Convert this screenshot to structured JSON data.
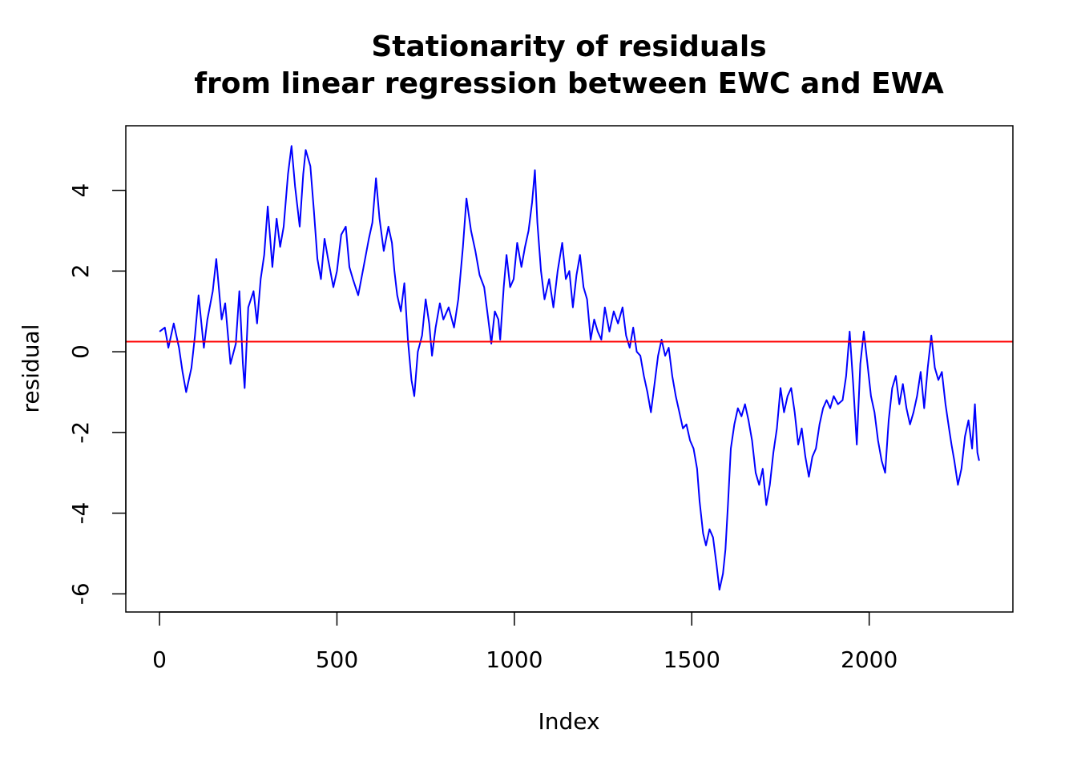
{
  "chart_data": {
    "type": "line",
    "title": "Stationarity of residuals",
    "subtitle": "from linear regression between EWC and EWA",
    "xlabel": "Index",
    "ylabel": "residual",
    "xlim": [
      -95,
      2405
    ],
    "ylim": [
      -6.45,
      5.6
    ],
    "x_ticks": [
      0,
      500,
      1000,
      1500,
      2000
    ],
    "y_ticks": [
      -6,
      -4,
      -2,
      0,
      2,
      4
    ],
    "x_tick_labels": [
      "0",
      "500",
      "1000",
      "1500",
      "2000"
    ],
    "y_tick_labels": [
      "-6",
      "-4",
      "-2",
      "0",
      "2",
      "4"
    ],
    "grid": false,
    "series": [
      {
        "color": "#0000ff",
        "points": [
          [
            0,
            0.5
          ],
          [
            15,
            0.6
          ],
          [
            25,
            0.1
          ],
          [
            40,
            0.7
          ],
          [
            55,
            0.1
          ],
          [
            65,
            -0.5
          ],
          [
            75,
            -1.0
          ],
          [
            90,
            -0.4
          ],
          [
            100,
            0.4
          ],
          [
            110,
            1.4
          ],
          [
            125,
            0.1
          ],
          [
            135,
            0.8
          ],
          [
            150,
            1.5
          ],
          [
            160,
            2.3
          ],
          [
            175,
            0.8
          ],
          [
            185,
            1.2
          ],
          [
            200,
            -0.3
          ],
          [
            215,
            0.2
          ],
          [
            225,
            1.5
          ],
          [
            235,
            -0.3
          ],
          [
            240,
            -0.9
          ],
          [
            250,
            1.1
          ],
          [
            265,
            1.5
          ],
          [
            275,
            0.7
          ],
          [
            285,
            1.8
          ],
          [
            295,
            2.4
          ],
          [
            305,
            3.6
          ],
          [
            318,
            2.1
          ],
          [
            330,
            3.3
          ],
          [
            340,
            2.6
          ],
          [
            350,
            3.1
          ],
          [
            362,
            4.4
          ],
          [
            372,
            5.1
          ],
          [
            382,
            4.1
          ],
          [
            395,
            3.1
          ],
          [
            405,
            4.4
          ],
          [
            412,
            5.0
          ],
          [
            425,
            4.6
          ],
          [
            435,
            3.5
          ],
          [
            445,
            2.3
          ],
          [
            455,
            1.8
          ],
          [
            465,
            2.8
          ],
          [
            475,
            2.3
          ],
          [
            490,
            1.6
          ],
          [
            500,
            2.0
          ],
          [
            512,
            2.9
          ],
          [
            525,
            3.1
          ],
          [
            535,
            2.1
          ],
          [
            545,
            1.8
          ],
          [
            560,
            1.4
          ],
          [
            575,
            2.1
          ],
          [
            590,
            2.8
          ],
          [
            600,
            3.2
          ],
          [
            610,
            4.3
          ],
          [
            620,
            3.3
          ],
          [
            632,
            2.5
          ],
          [
            645,
            3.1
          ],
          [
            655,
            2.7
          ],
          [
            662,
            2.0
          ],
          [
            670,
            1.4
          ],
          [
            680,
            1.0
          ],
          [
            690,
            1.7
          ],
          [
            700,
            0.3
          ],
          [
            710,
            -0.7
          ],
          [
            718,
            -1.1
          ],
          [
            728,
            0.0
          ],
          [
            740,
            0.4
          ],
          [
            750,
            1.3
          ],
          [
            760,
            0.7
          ],
          [
            768,
            -0.1
          ],
          [
            778,
            0.6
          ],
          [
            790,
            1.2
          ],
          [
            800,
            0.8
          ],
          [
            815,
            1.1
          ],
          [
            830,
            0.6
          ],
          [
            842,
            1.3
          ],
          [
            855,
            2.6
          ],
          [
            865,
            3.8
          ],
          [
            878,
            3.0
          ],
          [
            890,
            2.5
          ],
          [
            902,
            1.9
          ],
          [
            915,
            1.6
          ],
          [
            925,
            0.9
          ],
          [
            935,
            0.2
          ],
          [
            945,
            1.0
          ],
          [
            955,
            0.8
          ],
          [
            960,
            0.3
          ],
          [
            970,
            1.6
          ],
          [
            978,
            2.4
          ],
          [
            988,
            1.6
          ],
          [
            998,
            1.8
          ],
          [
            1008,
            2.7
          ],
          [
            1020,
            2.1
          ],
          [
            1030,
            2.6
          ],
          [
            1040,
            3.0
          ],
          [
            1050,
            3.7
          ],
          [
            1058,
            4.5
          ],
          [
            1065,
            3.2
          ],
          [
            1075,
            2.0
          ],
          [
            1085,
            1.3
          ],
          [
            1098,
            1.8
          ],
          [
            1110,
            1.1
          ],
          [
            1122,
            2.0
          ],
          [
            1135,
            2.7
          ],
          [
            1145,
            1.8
          ],
          [
            1155,
            2.0
          ],
          [
            1165,
            1.1
          ],
          [
            1175,
            1.9
          ],
          [
            1185,
            2.4
          ],
          [
            1195,
            1.6
          ],
          [
            1205,
            1.3
          ],
          [
            1215,
            0.3
          ],
          [
            1225,
            0.8
          ],
          [
            1235,
            0.5
          ],
          [
            1245,
            0.3
          ],
          [
            1255,
            1.1
          ],
          [
            1268,
            0.5
          ],
          [
            1280,
            1.0
          ],
          [
            1292,
            0.7
          ],
          [
            1305,
            1.1
          ],
          [
            1315,
            0.4
          ],
          [
            1325,
            0.1
          ],
          [
            1335,
            0.6
          ],
          [
            1345,
            0.0
          ],
          [
            1355,
            -0.1
          ],
          [
            1365,
            -0.6
          ],
          [
            1375,
            -1.0
          ],
          [
            1385,
            -1.5
          ],
          [
            1395,
            -0.8
          ],
          [
            1405,
            -0.1
          ],
          [
            1415,
            0.3
          ],
          [
            1425,
            -0.1
          ],
          [
            1435,
            0.1
          ],
          [
            1445,
            -0.6
          ],
          [
            1455,
            -1.1
          ],
          [
            1465,
            -1.5
          ],
          [
            1475,
            -1.9
          ],
          [
            1485,
            -1.8
          ],
          [
            1495,
            -2.2
          ],
          [
            1505,
            -2.4
          ],
          [
            1515,
            -2.9
          ],
          [
            1522,
            -3.7
          ],
          [
            1532,
            -4.5
          ],
          [
            1540,
            -4.8
          ],
          [
            1550,
            -4.4
          ],
          [
            1560,
            -4.6
          ],
          [
            1570,
            -5.3
          ],
          [
            1578,
            -5.9
          ],
          [
            1588,
            -5.5
          ],
          [
            1595,
            -4.9
          ],
          [
            1602,
            -3.8
          ],
          [
            1610,
            -2.4
          ],
          [
            1620,
            -1.8
          ],
          [
            1630,
            -1.4
          ],
          [
            1640,
            -1.6
          ],
          [
            1650,
            -1.3
          ],
          [
            1660,
            -1.7
          ],
          [
            1670,
            -2.2
          ],
          [
            1680,
            -3.0
          ],
          [
            1690,
            -3.3
          ],
          [
            1700,
            -2.9
          ],
          [
            1710,
            -3.8
          ],
          [
            1720,
            -3.3
          ],
          [
            1730,
            -2.5
          ],
          [
            1740,
            -1.9
          ],
          [
            1750,
            -0.9
          ],
          [
            1760,
            -1.5
          ],
          [
            1770,
            -1.1
          ],
          [
            1780,
            -0.9
          ],
          [
            1790,
            -1.5
          ],
          [
            1800,
            -2.3
          ],
          [
            1810,
            -1.9
          ],
          [
            1820,
            -2.6
          ],
          [
            1830,
            -3.1
          ],
          [
            1840,
            -2.6
          ],
          [
            1850,
            -2.4
          ],
          [
            1860,
            -1.8
          ],
          [
            1870,
            -1.4
          ],
          [
            1880,
            -1.2
          ],
          [
            1890,
            -1.4
          ],
          [
            1900,
            -1.1
          ],
          [
            1912,
            -1.3
          ],
          [
            1925,
            -1.2
          ],
          [
            1935,
            -0.6
          ],
          [
            1945,
            0.5
          ],
          [
            1955,
            -0.8
          ],
          [
            1965,
            -2.3
          ],
          [
            1975,
            -0.3
          ],
          [
            1985,
            0.5
          ],
          [
            1995,
            -0.3
          ],
          [
            2005,
            -1.1
          ],
          [
            2015,
            -1.5
          ],
          [
            2025,
            -2.2
          ],
          [
            2035,
            -2.7
          ],
          [
            2045,
            -3.0
          ],
          [
            2055,
            -1.7
          ],
          [
            2065,
            -0.9
          ],
          [
            2075,
            -0.6
          ],
          [
            2085,
            -1.3
          ],
          [
            2095,
            -0.8
          ],
          [
            2105,
            -1.4
          ],
          [
            2115,
            -1.8
          ],
          [
            2125,
            -1.5
          ],
          [
            2135,
            -1.1
          ],
          [
            2145,
            -0.5
          ],
          [
            2155,
            -1.4
          ],
          [
            2165,
            -0.4
          ],
          [
            2175,
            0.4
          ],
          [
            2185,
            -0.4
          ],
          [
            2195,
            -0.7
          ],
          [
            2205,
            -0.5
          ],
          [
            2215,
            -1.3
          ],
          [
            2225,
            -1.9
          ],
          [
            2232,
            -2.3
          ],
          [
            2240,
            -2.7
          ],
          [
            2250,
            -3.3
          ],
          [
            2260,
            -2.9
          ],
          [
            2270,
            -2.1
          ],
          [
            2280,
            -1.7
          ],
          [
            2290,
            -2.4
          ],
          [
            2298,
            -1.3
          ],
          [
            2305,
            -2.5
          ],
          [
            2310,
            -2.7
          ]
        ]
      }
    ],
    "reference_lines": [
      {
        "orientation": "horizontal",
        "y": 0.25,
        "color": "#ff0000"
      }
    ]
  }
}
